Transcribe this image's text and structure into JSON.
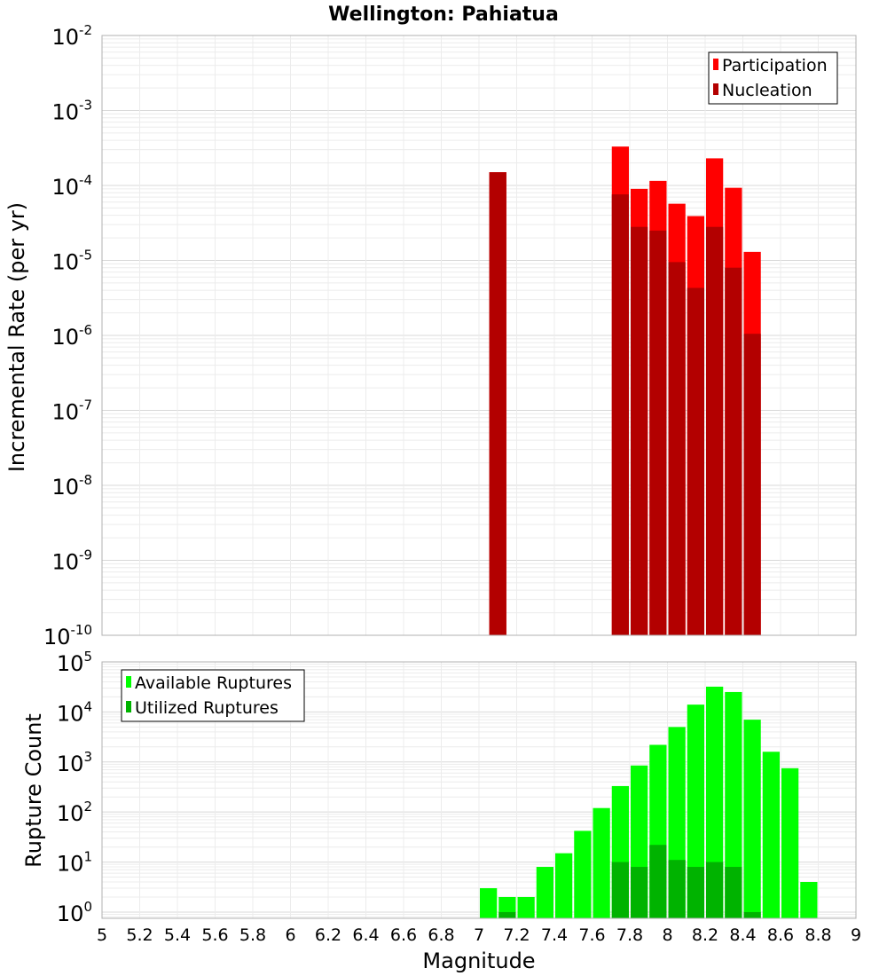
{
  "chart_data": [
    {
      "type": "bar",
      "title": "Wellington: Pahiatua",
      "ylabel": "Incremental Rate (per yr)",
      "xlabel": "",
      "y_scale": "log",
      "ylim": [
        1e-10,
        0.01
      ],
      "xlim": [
        5,
        9
      ],
      "y_tick_exponents": [
        "-2",
        "-3",
        "-4",
        "-5",
        "-6",
        "-7",
        "-8",
        "-9",
        "-10"
      ],
      "y_tick_base": "10",
      "legend": {
        "placement": "top-right",
        "entries": [
          "Participation",
          "Nucleation"
        ]
      },
      "grid": true,
      "series": [
        {
          "name": "Participation",
          "color": "#ff0000",
          "x": [
            7.1,
            7.75,
            7.85,
            7.95,
            8.05,
            8.15,
            8.25,
            8.35,
            8.45
          ],
          "values": [
            0.00015,
            0.00033,
            9e-05,
            0.000115,
            5.7e-05,
            3.9e-05,
            0.00023,
            9.3e-05,
            1.3e-05
          ]
        },
        {
          "name": "Nucleation",
          "color": "#b30000",
          "x": [
            7.1,
            7.75,
            7.85,
            7.95,
            8.05,
            8.15,
            8.25,
            8.35,
            8.45
          ],
          "values": [
            0.00015,
            7.6e-05,
            2.8e-05,
            2.5e-05,
            9.5e-06,
            4.3e-06,
            2.8e-05,
            8e-06,
            1.05e-06
          ]
        }
      ]
    },
    {
      "type": "bar",
      "title": "",
      "ylabel": "Rupture Count",
      "xlabel": "Magnitude",
      "y_scale": "log",
      "ylim": [
        0.75,
        100000
      ],
      "xlim": [
        5,
        9
      ],
      "y_tick_exponents": [
        "5",
        "4",
        "3",
        "2",
        "1",
        "0"
      ],
      "y_tick_base": "10",
      "x_tick_labels": [
        "5",
        "5.2",
        "5.4",
        "5.6",
        "5.8",
        "6",
        "6.2",
        "6.4",
        "6.6",
        "6.8",
        "7",
        "7.2",
        "7.4",
        "7.6",
        "7.8",
        "8",
        "8.2",
        "8.4",
        "8.6",
        "8.8",
        "9"
      ],
      "legend": {
        "placement": "top-left",
        "entries": [
          "Available Ruptures",
          "Utilized Ruptures"
        ]
      },
      "grid": true,
      "series": [
        {
          "name": "Available Ruptures",
          "color": "#00ff00",
          "x": [
            7.05,
            7.15,
            7.25,
            7.35,
            7.45,
            7.55,
            7.65,
            7.75,
            7.85,
            7.95,
            8.05,
            8.15,
            8.25,
            8.35,
            8.45,
            8.55,
            8.65,
            8.75
          ],
          "values": [
            3,
            2,
            2,
            8,
            15,
            42,
            120,
            330,
            850,
            2200,
            5000,
            14000,
            32000,
            25000,
            7000,
            1600,
            750,
            4
          ]
        },
        {
          "name": "Utilized Ruptures",
          "color": "#00b300",
          "x": [
            7.15,
            7.75,
            7.85,
            7.95,
            8.05,
            8.15,
            8.25,
            8.35,
            8.45
          ],
          "values": [
            1,
            10,
            8,
            22,
            11,
            8,
            10,
            8,
            1
          ]
        }
      ]
    }
  ]
}
